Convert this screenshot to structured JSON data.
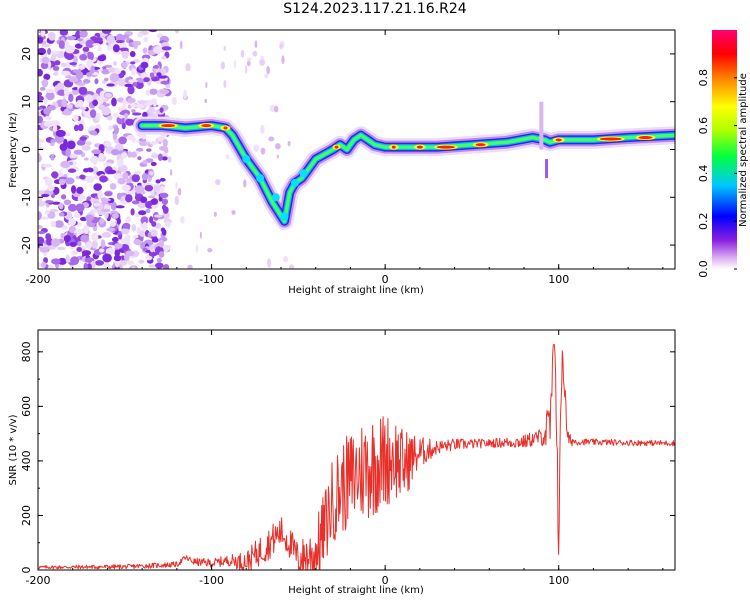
{
  "title": "S124.2023.117.21.16.R24",
  "chart_data": [
    {
      "type": "heatmap",
      "xlabel": "Height of straight line (km)",
      "ylabel": "Frequency (Hz)",
      "xlim": [
        -200,
        167
      ],
      "ylim": [
        -25,
        25
      ],
      "xticks": [
        -200,
        -100,
        0,
        100
      ],
      "yticks": [
        -20,
        -10,
        0,
        10,
        20
      ],
      "colorbar": {
        "label": "Normalized spectral amplitude",
        "range": [
          0,
          1
        ],
        "ticks": [
          0.0,
          0.2,
          0.4,
          0.6,
          0.8
        ]
      },
      "ridge": {
        "x": [
          -140,
          -128,
          -115,
          -100,
          -92,
          -88,
          -80,
          -72,
          -65,
          -58,
          -55,
          -52,
          -48,
          -44,
          -40,
          -35,
          -30,
          -26,
          -22,
          -18,
          -14,
          -10,
          -6,
          0,
          10,
          30,
          50,
          70,
          85,
          92,
          95,
          100,
          120,
          140,
          167
        ],
        "y": [
          5,
          5,
          4.5,
          5,
          4.5,
          3,
          -2,
          -6,
          -11,
          -15,
          -9,
          -7,
          -6,
          -4,
          -2,
          -1,
          0,
          1,
          0,
          2,
          3,
          2,
          1,
          0.5,
          0.5,
          0.5,
          1,
          1.5,
          2.5,
          2,
          1.5,
          2,
          2,
          2.5,
          3
        ]
      }
    },
    {
      "type": "line",
      "xlabel": "Height of straight line (km)",
      "ylabel": "SNR (10 * v/v)",
      "xlim": [
        -200,
        167
      ],
      "ylim": [
        0,
        880
      ],
      "xticks": [
        -200,
        -100,
        0,
        100
      ],
      "yticks": [
        0,
        200,
        400,
        600,
        800
      ],
      "color": "#e8302a",
      "envelope": {
        "x": [
          -200,
          -150,
          -120,
          -115,
          -110,
          -100,
          -90,
          -80,
          -70,
          -60,
          -55,
          -50,
          -40,
          -35,
          -30,
          -25,
          -20,
          -15,
          -10,
          -5,
          0,
          5,
          10,
          15,
          20,
          30,
          40,
          60,
          80,
          90,
          95,
          98,
          100,
          102,
          105,
          110,
          130,
          150,
          167
        ],
        "y": [
          10,
          12,
          20,
          45,
          30,
          25,
          35,
          30,
          80,
          140,
          100,
          40,
          60,
          150,
          260,
          300,
          330,
          360,
          380,
          390,
          400,
          420,
          380,
          410,
          430,
          450,
          460,
          465,
          470,
          490,
          520,
          850,
          100,
          830,
          480,
          470,
          468,
          466,
          465
        ]
      },
      "noise": {
        "x": [
          -200,
          -120,
          -90,
          -70,
          -50,
          -40,
          -30,
          -20,
          -10,
          0,
          10,
          20,
          30,
          60,
          90,
          95,
          100,
          105,
          110,
          167
        ],
        "amplitude": [
          6,
          10,
          20,
          60,
          60,
          120,
          160,
          180,
          200,
          180,
          140,
          60,
          25,
          15,
          30,
          120,
          120,
          30,
          12,
          10
        ]
      }
    }
  ]
}
